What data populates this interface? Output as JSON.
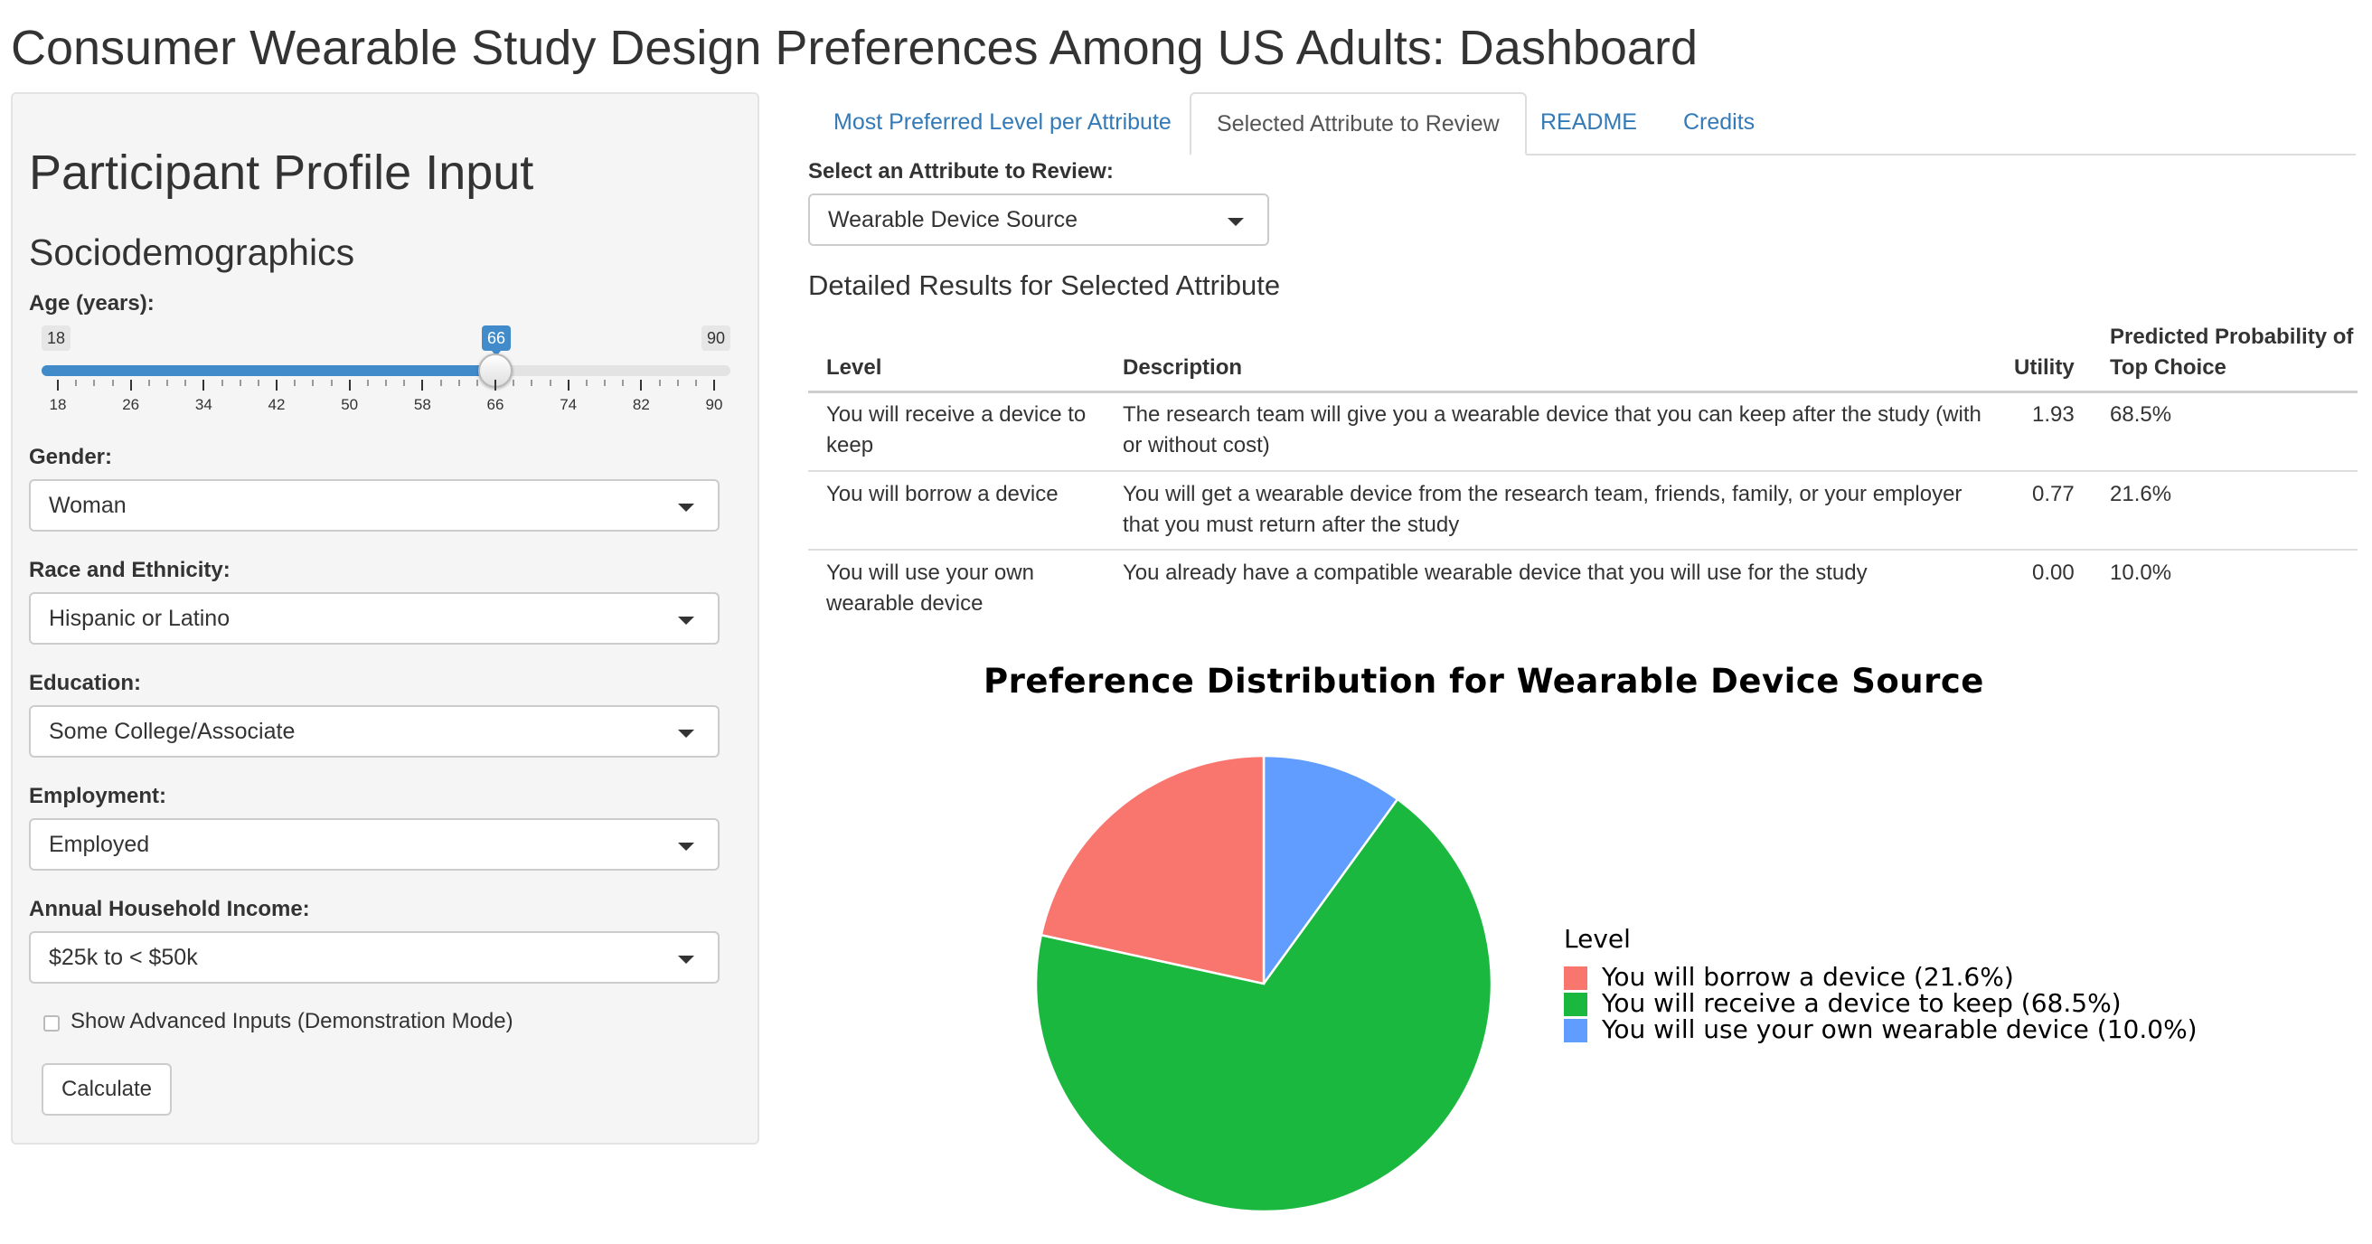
{
  "page": {
    "title": "Consumer Wearable Study Design Preferences Among US Adults: Dashboard"
  },
  "sidebar": {
    "heading": "Participant Profile Input",
    "subheading": "Sociodemographics",
    "age": {
      "label": "Age (years):",
      "min": 18,
      "max": 90,
      "value": 66,
      "min_label": "18",
      "max_label": "90",
      "value_label": "66",
      "ticks": [
        "18",
        "26",
        "34",
        "42",
        "50",
        "58",
        "66",
        "74",
        "82",
        "90"
      ]
    },
    "gender": {
      "label": "Gender:",
      "value": "Woman"
    },
    "race": {
      "label": "Race and Ethnicity:",
      "value": "Hispanic or Latino"
    },
    "education": {
      "label": "Education:",
      "value": "Some College/Associate"
    },
    "employment": {
      "label": "Employment:",
      "value": "Employed"
    },
    "income": {
      "label": "Annual Household Income:",
      "value": "$25k to < $50k"
    },
    "advanced": {
      "label": "Show Advanced Inputs (Demonstration Mode)",
      "checked": false
    },
    "calculate_label": "Calculate"
  },
  "tabs": [
    {
      "label": "Most Preferred Level per Attribute",
      "active": false
    },
    {
      "label": "Selected Attribute to Review",
      "active": true
    },
    {
      "label": "README",
      "active": false
    },
    {
      "label": "Credits",
      "active": false
    }
  ],
  "main": {
    "select_label": "Select an Attribute to Review:",
    "select_value": "Wearable Device Source",
    "results_heading": "Detailed Results for Selected Attribute",
    "table": {
      "headers": [
        "Level",
        "Description",
        "Utility",
        "Predicted Probability of Top Choice"
      ],
      "rows": [
        {
          "level": "You will receive a device to keep",
          "description": "The research team will give you a wearable device that you can keep after the study (with or without cost)",
          "utility": "1.93",
          "probability": "68.5%"
        },
        {
          "level": "You will borrow a device",
          "description": "You will get a wearable device from the research team, friends, family, or your employer that you must return after the study",
          "utility": "0.77",
          "probability": "21.6%"
        },
        {
          "level": "You will use your own wearable device",
          "description": "You already have a compatible wearable device that you will use for the study",
          "utility": "0.00",
          "probability": "10.0%"
        }
      ]
    }
  },
  "chart_data": {
    "type": "pie",
    "title": "Preference Distribution for Wearable Device Source",
    "legend_title": "Level",
    "legend_position": "right",
    "slices": [
      {
        "label": "You will borrow a device (21.6%)",
        "value": 21.6,
        "color": "#f8766d"
      },
      {
        "label": "You will receive a device to keep (68.5%)",
        "value": 68.5,
        "color": "#1bb840"
      },
      {
        "label": "You will use your own wearable device (10.0%)",
        "value": 10.0,
        "color": "#619cff"
      }
    ]
  }
}
